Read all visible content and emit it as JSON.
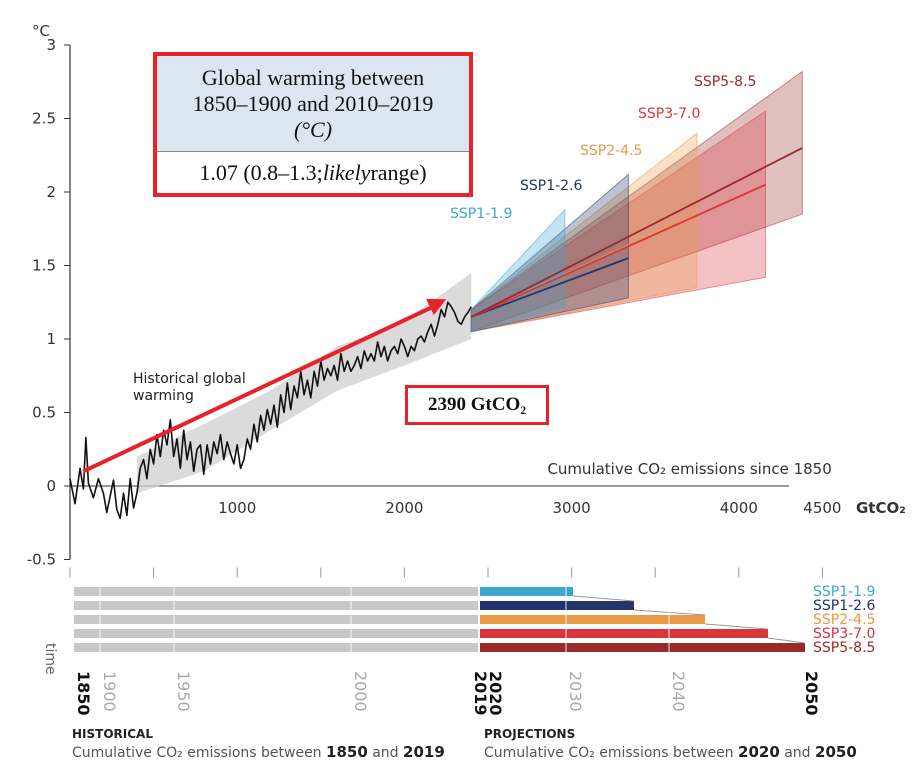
{
  "chart_data": {
    "type": "line",
    "y_unit": "°C",
    "x_unit": "GtCO₂",
    "xlim": [
      0,
      4500
    ],
    "ylim": [
      -0.5,
      3
    ],
    "x_ticks": [
      1000,
      2000,
      3000,
      4000,
      4500
    ],
    "y_ticks": [
      -0.5,
      0,
      0.5,
      1,
      1.5,
      2,
      2.5,
      3
    ],
    "x_axis_note": "Cumulative CO₂ emissions since 1850",
    "historical": {
      "label": "Historical global warming",
      "color": "#111111",
      "points": [
        [
          0,
          0.05
        ],
        [
          30,
          -0.12
        ],
        [
          60,
          0.12
        ],
        [
          80,
          -0.02
        ],
        [
          95,
          0.33
        ],
        [
          110,
          0.02
        ],
        [
          140,
          -0.08
        ],
        [
          170,
          0.05
        ],
        [
          200,
          -0.05
        ],
        [
          220,
          -0.18
        ],
        [
          240,
          -0.07
        ],
        [
          260,
          0.04
        ],
        [
          280,
          -0.16
        ],
        [
          300,
          -0.22
        ],
        [
          320,
          -0.05
        ],
        [
          340,
          -0.2
        ],
        [
          360,
          0.05
        ],
        [
          380,
          -0.15
        ],
        [
          400,
          -0.05
        ],
        [
          420,
          0.12
        ],
        [
          440,
          0.18
        ],
        [
          460,
          0.05
        ],
        [
          480,
          0.25
        ],
        [
          500,
          0.15
        ],
        [
          520,
          0.35
        ],
        [
          540,
          0.2
        ],
        [
          560,
          0.38
        ],
        [
          580,
          0.28
        ],
        [
          600,
          0.45
        ],
        [
          620,
          0.2
        ],
        [
          640,
          0.32
        ],
        [
          660,
          0.12
        ],
        [
          680,
          0.38
        ],
        [
          700,
          0.18
        ],
        [
          720,
          0.3
        ],
        [
          740,
          0.1
        ],
        [
          760,
          0.25
        ],
        [
          780,
          0.28
        ],
        [
          800,
          0.08
        ],
        [
          820,
          0.28
        ],
        [
          840,
          0.15
        ],
        [
          860,
          0.3
        ],
        [
          880,
          0.22
        ],
        [
          900,
          0.35
        ],
        [
          920,
          0.18
        ],
        [
          940,
          0.3
        ],
        [
          960,
          0.22
        ],
        [
          980,
          0.15
        ],
        [
          1000,
          0.28
        ],
        [
          1020,
          0.12
        ],
        [
          1040,
          0.18
        ],
        [
          1060,
          0.32
        ],
        [
          1080,
          0.25
        ],
        [
          1100,
          0.42
        ],
        [
          1120,
          0.3
        ],
        [
          1140,
          0.48
        ],
        [
          1160,
          0.38
        ],
        [
          1180,
          0.52
        ],
        [
          1200,
          0.42
        ],
        [
          1220,
          0.55
        ],
        [
          1240,
          0.4
        ],
        [
          1260,
          0.62
        ],
        [
          1280,
          0.5
        ],
        [
          1300,
          0.7
        ],
        [
          1320,
          0.52
        ],
        [
          1340,
          0.68
        ],
        [
          1360,
          0.6
        ],
        [
          1380,
          0.78
        ],
        [
          1400,
          0.62
        ],
        [
          1420,
          0.72
        ],
        [
          1440,
          0.6
        ],
        [
          1460,
          0.78
        ],
        [
          1480,
          0.68
        ],
        [
          1500,
          0.85
        ],
        [
          1520,
          0.72
        ],
        [
          1540,
          0.8
        ],
        [
          1560,
          0.75
        ],
        [
          1580,
          0.82
        ],
        [
          1600,
          0.72
        ],
        [
          1620,
          0.9
        ],
        [
          1640,
          0.78
        ],
        [
          1660,
          0.85
        ],
        [
          1680,
          0.78
        ],
        [
          1700,
          0.82
        ],
        [
          1720,
          0.88
        ],
        [
          1740,
          0.8
        ],
        [
          1760,
          0.92
        ],
        [
          1780,
          0.85
        ],
        [
          1800,
          0.9
        ],
        [
          1820,
          0.85
        ],
        [
          1840,
          0.98
        ],
        [
          1860,
          0.88
        ],
        [
          1880,
          0.95
        ],
        [
          1900,
          0.85
        ],
        [
          1920,
          0.92
        ],
        [
          1940,
          0.95
        ],
        [
          1960,
          0.9
        ],
        [
          1980,
          1.0
        ],
        [
          2000,
          0.95
        ],
        [
          2020,
          0.88
        ],
        [
          2040,
          0.95
        ],
        [
          2060,
          0.92
        ],
        [
          2080,
          1.0
        ],
        [
          2100,
          1.02
        ],
        [
          2120,
          0.98
        ],
        [
          2140,
          1.05
        ],
        [
          2160,
          1.1
        ],
        [
          2180,
          1.02
        ],
        [
          2200,
          1.1
        ],
        [
          2220,
          1.2
        ],
        [
          2240,
          1.15
        ],
        [
          2260,
          1.25
        ],
        [
          2280,
          1.22
        ],
        [
          2300,
          1.18
        ],
        [
          2320,
          1.12
        ],
        [
          2340,
          1.1
        ],
        [
          2360,
          1.15
        ],
        [
          2380,
          1.18
        ],
        [
          2400,
          1.22
        ]
      ]
    },
    "historical_band": {
      "upper": [
        [
          400,
          0.2
        ],
        [
          800,
          0.42
        ],
        [
          1200,
          0.65
        ],
        [
          1600,
          0.95
        ],
        [
          2000,
          1.12
        ],
        [
          2400,
          1.45
        ]
      ],
      "lower": [
        [
          400,
          -0.05
        ],
        [
          800,
          0.1
        ],
        [
          1200,
          0.38
        ],
        [
          1600,
          0.65
        ],
        [
          2000,
          0.82
        ],
        [
          2400,
          1.0
        ]
      ]
    },
    "scenarios": [
      {
        "name": "SSP1-1.9",
        "color": "#3ea6cf",
        "x_end": 2960,
        "y_end": 1.45,
        "band_high": 1.88,
        "band_low": 1.22
      },
      {
        "name": "SSP1-2.6",
        "color": "#22356b",
        "x_end": 3340,
        "y_end": 1.55,
        "band_high": 2.12,
        "band_low": 1.28
      },
      {
        "name": "SSP2-4.5",
        "color": "#e89a45",
        "x_end": 3750,
        "y_end": 1.85,
        "band_high": 2.4,
        "band_low": 1.35
      },
      {
        "name": "SSP3-7.0",
        "color": "#d9353a",
        "x_end": 4160,
        "y_end": 2.05,
        "band_high": 2.55,
        "band_low": 1.42
      },
      {
        "name": "SSP5-8.5",
        "color": "#9a2a2a",
        "x_end": 4380,
        "y_end": 2.3,
        "band_high": 2.82,
        "band_low": 1.85
      }
    ],
    "projection_start": [
      2400,
      1.1
    ],
    "infobox": {
      "title_line1": "Global warming between",
      "title_line2": "1850–1900 and 2010–2019",
      "title_line3": "(°C)",
      "value": "1.07 (0.8–1.3; likely range)",
      "value_main": "1.07 (0.8–1.3; ",
      "value_italic": "likely",
      "value_end": " range)"
    },
    "annotation_box": "2390 GtCO₂",
    "arrow": {
      "from": [
        80,
        0.1
      ],
      "to": [
        2250,
        1.27
      ]
    },
    "timeline": {
      "label": "time",
      "years": [
        "1850",
        "1900",
        "1950",
        "2000",
        "2019",
        "2020",
        "2030",
        "2040",
        "2050"
      ],
      "bold_years": [
        "1850",
        "2019",
        "2020",
        "2050"
      ],
      "scenario_labels": [
        "SSP1-1.9",
        "SSP1-2.6",
        "SSP2-4.5",
        "SSP3-7.0",
        "SSP5-8.5"
      ]
    },
    "captions": {
      "historical_title": "HISTORICAL",
      "historical_text": "Cumulative CO₂ emissions between ",
      "historical_from": "1850",
      "and": " and ",
      "historical_to": "2019",
      "projections_title": "PROJECTIONS",
      "projections_text": "Cumulative CO₂ emissions between ",
      "projections_from": "2020",
      "projections_to": "2050"
    }
  }
}
